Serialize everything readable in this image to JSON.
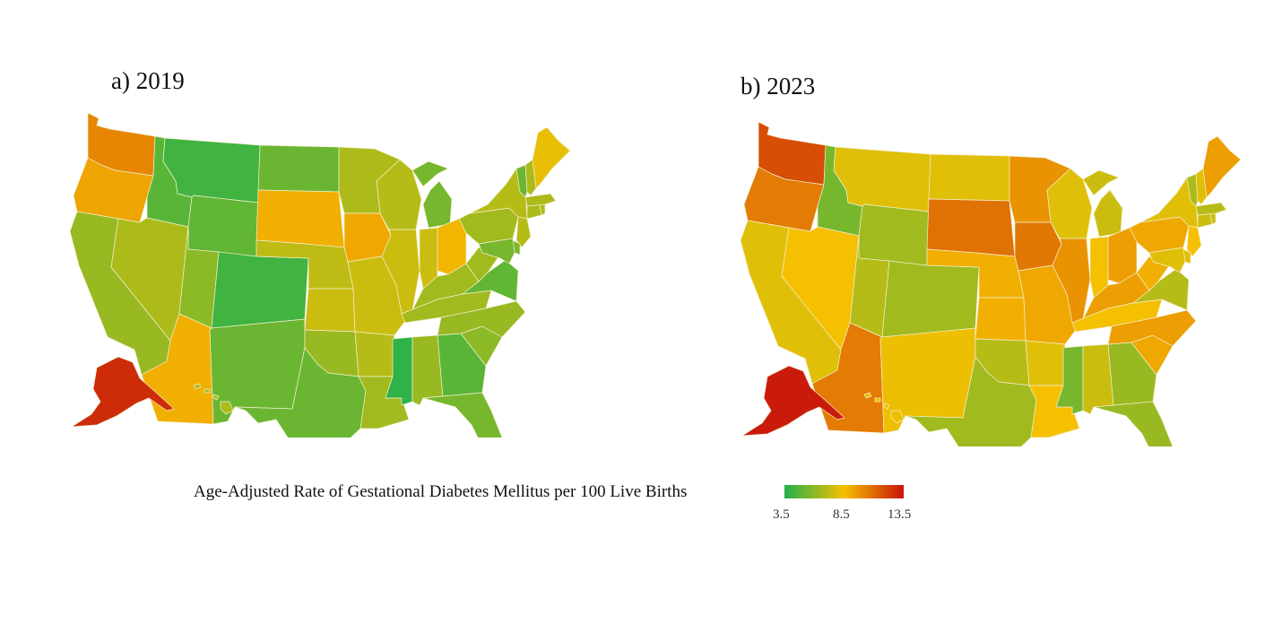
{
  "panels": [
    {
      "title": "a) 2019",
      "year": 2019,
      "regions": {
        "WA": 10.2,
        "OR": 9.3,
        "CA": 6.3,
        "ID": 4.8,
        "MT": 4.2,
        "WY": 5.0,
        "NV": 6.8,
        "UT": 6.0,
        "CO": 4.2,
        "AZ": 9.0,
        "NM": 5.2,
        "ND": 5.2,
        "SD": 9.0,
        "NE": 7.2,
        "KS": 7.5,
        "OK": 6.3,
        "TX": 5.2,
        "MN": 6.8,
        "IA": 9.2,
        "MO": 7.5,
        "AR": 7.0,
        "LA": 6.5,
        "WI": 7.0,
        "IL": 7.5,
        "MS": 3.8,
        "AL": 6.3,
        "GA": 4.8,
        "FL": 5.5,
        "MI": 5.5,
        "IN": 7.5,
        "OH": 8.8,
        "KY": 6.5,
        "TN": 6.5,
        "SC": 6.0,
        "NC": 6.3,
        "VA": 5.0,
        "WV": 6.5,
        "PA": 6.5,
        "NY": 7.0,
        "NJ": 7.0,
        "DE": 5.5,
        "MD": 5.5,
        "CT": 6.8,
        "RI": 6.8,
        "MA": 6.8,
        "VT": 5.2,
        "NH": 6.8,
        "ME": 8.2,
        "AK": 12.8,
        "HI": 6.8
      }
    },
    {
      "title": "b) 2023",
      "year": 2023,
      "regions": {
        "WA": 11.8,
        "OR": 10.5,
        "CA": 8.0,
        "ID": 5.5,
        "MT": 8.0,
        "WY": 6.5,
        "NV": 8.5,
        "UT": 7.0,
        "CO": 6.5,
        "AZ": 10.5,
        "NM": 8.3,
        "ND": 8.0,
        "SD": 10.8,
        "NE": 9.0,
        "KS": 9.0,
        "OK": 7.0,
        "TX": 6.5,
        "MN": 9.8,
        "IA": 10.6,
        "MO": 9.2,
        "AR": 8.0,
        "LA": 8.5,
        "WI": 8.0,
        "IL": 9.8,
        "MS": 5.5,
        "AL": 7.5,
        "GA": 6.3,
        "FL": 6.3,
        "MI": 7.5,
        "IN": 8.5,
        "OH": 9.5,
        "KY": 9.5,
        "TN": 8.5,
        "SC": 9.2,
        "NC": 9.5,
        "VA": 7.0,
        "WV": 9.0,
        "PA": 9.2,
        "NY": 8.0,
        "NJ": 8.5,
        "DE": 8.0,
        "MD": 8.0,
        "CT": 7.5,
        "RI": 7.5,
        "MA": 7.0,
        "VT": 6.8,
        "NH": 8.0,
        "ME": 9.5,
        "AK": 13.3,
        "HI": 8.3
      }
    }
  ],
  "legend": {
    "title": "Age-Adjusted Rate of Gestational Diabetes Mellitus per 100 Live Births",
    "min": 3.5,
    "mid": 8.5,
    "max": 13.5,
    "ticks": [
      "3.5",
      "8.5",
      "13.5"
    ],
    "colors": {
      "low": "#22b14c",
      "mid": "#f5c000",
      "high": "#c8140a"
    }
  }
}
